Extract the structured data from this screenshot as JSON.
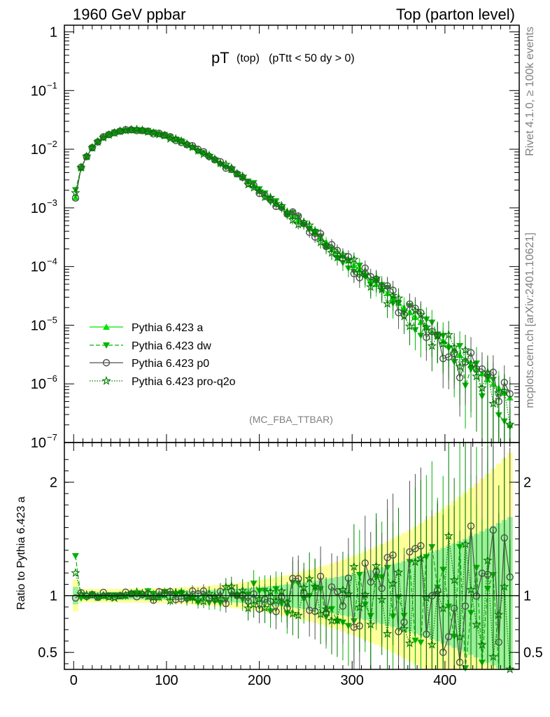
{
  "header": {
    "left_title": "1960 GeV ppbar",
    "right_title": "Top (parton level)"
  },
  "side": {
    "rivet_label": "Rivet 4.1.0, ≥ 100k events",
    "site_label": "mcplots.cern.ch [arXiv:2401.10621]"
  },
  "plot": {
    "title_main": "pT",
    "title_sub1": "(top)",
    "title_sub2": "(pTtt < 50 dy > 0)",
    "analysis_id": "(MC_FBA_TTBAR)",
    "ratio_ylabel": "Ratio to Pythia 6.423 a"
  },
  "colors": {
    "a": "#00e600",
    "dw": "#00b400",
    "p0": "#505050",
    "proq2o": "#007800",
    "band_yellow": "#ffff99",
    "band_green": "#99f099"
  },
  "chart_data": {
    "type": "line",
    "xlabel": "",
    "xlim": [
      -10,
      480
    ],
    "xticks": [
      0,
      100,
      200,
      300,
      400
    ],
    "main": {
      "yscale": "log",
      "ylim": [
        1e-07,
        1.3
      ],
      "yticks": [
        {
          "v": 1,
          "label": "1"
        },
        {
          "v": 0.1,
          "label": "10",
          "exp": "−1"
        },
        {
          "v": 0.01,
          "label": "10",
          "exp": "−2"
        },
        {
          "v": 0.001,
          "label": "10",
          "exp": "−3"
        },
        {
          "v": 0.0001,
          "label": "10",
          "exp": "−4"
        },
        {
          "v": 1e-05,
          "label": "10",
          "exp": "−5"
        },
        {
          "v": 1e-06,
          "label": "10",
          "exp": "−6"
        },
        {
          "v": 1e-07,
          "label": "10",
          "exp": "−7"
        }
      ],
      "x": [
        2,
        8,
        14,
        20,
        26,
        32,
        38,
        44,
        50,
        56,
        62,
        68,
        74,
        80,
        86,
        92,
        98,
        104,
        110,
        116,
        122,
        128,
        134,
        140,
        146,
        152,
        158,
        164,
        170,
        176,
        182,
        188,
        194,
        200,
        206,
        212,
        218,
        224,
        230,
        236,
        242,
        248,
        254,
        260,
        266,
        272,
        278,
        284,
        290,
        296,
        302,
        308,
        314,
        320,
        326,
        332,
        338,
        344,
        350,
        356,
        362,
        368,
        374,
        380,
        386,
        392,
        398,
        404,
        410,
        416,
        422,
        428,
        434,
        440,
        446,
        452,
        458,
        464,
        470
      ],
      "reference": [
        0.0015,
        0.0048,
        0.0075,
        0.0105,
        0.0135,
        0.0158,
        0.0178,
        0.0193,
        0.0203,
        0.0209,
        0.0211,
        0.021,
        0.0206,
        0.0199,
        0.0191,
        0.0181,
        0.017,
        0.0158,
        0.0146,
        0.0134,
        0.0122,
        0.011,
        0.0098,
        0.0087,
        0.0077,
        0.0068,
        0.0059,
        0.0051,
        0.0044,
        0.0038,
        0.0033,
        0.0028,
        0.0024,
        0.002,
        0.0017,
        0.00145,
        0.00123,
        0.00104,
        0.00088,
        0.00074,
        0.00063,
        0.00053,
        0.00044,
        0.00037,
        0.00031,
        0.00026,
        0.00022,
        0.000182,
        0.000152,
        0.000127,
        0.000105,
        8.8e-05,
        7.3e-05,
        6e-05,
        5e-05,
        4.2e-05,
        3.5e-05,
        2.9e-05,
        2.4e-05,
        2e-05,
        1.65e-05,
        1.37e-05,
        1.13e-05,
        9.4e-06,
        7.8e-06,
        6.5e-06,
        5.4e-06,
        4.5e-06,
        3.7e-06,
        3.1e-06,
        2.6e-06,
        2.1e-06,
        1.8e-06,
        1.5e-06,
        1.2e-06,
        1e-06,
        8.5e-07,
        7e-07,
        5.8e-07
      ],
      "series": [
        {
          "name": "Pythia 6.423 a",
          "key": "a",
          "marker": "triangle-up",
          "dash": "solid",
          "seed": 1
        },
        {
          "name": "Pythia 6.423 dw",
          "key": "dw",
          "marker": "triangle-down",
          "dash": "dashed",
          "seed": 2
        },
        {
          "name": "Pythia 6.423 p0",
          "key": "p0",
          "marker": "circle",
          "dash": "solid",
          "seed": 3
        },
        {
          "name": "Pythia 6.423 pro-q2o",
          "key": "proq2o",
          "marker": "star",
          "dash": "dotted",
          "seed": 4
        }
      ]
    },
    "ratio": {
      "ylim": [
        0.35,
        2.35
      ],
      "yticks": [
        {
          "v": 0.5,
          "label": "0.5"
        },
        {
          "v": 1,
          "label": "1"
        },
        {
          "v": 2,
          "label": "2"
        }
      ],
      "reference_line": 1
    }
  }
}
